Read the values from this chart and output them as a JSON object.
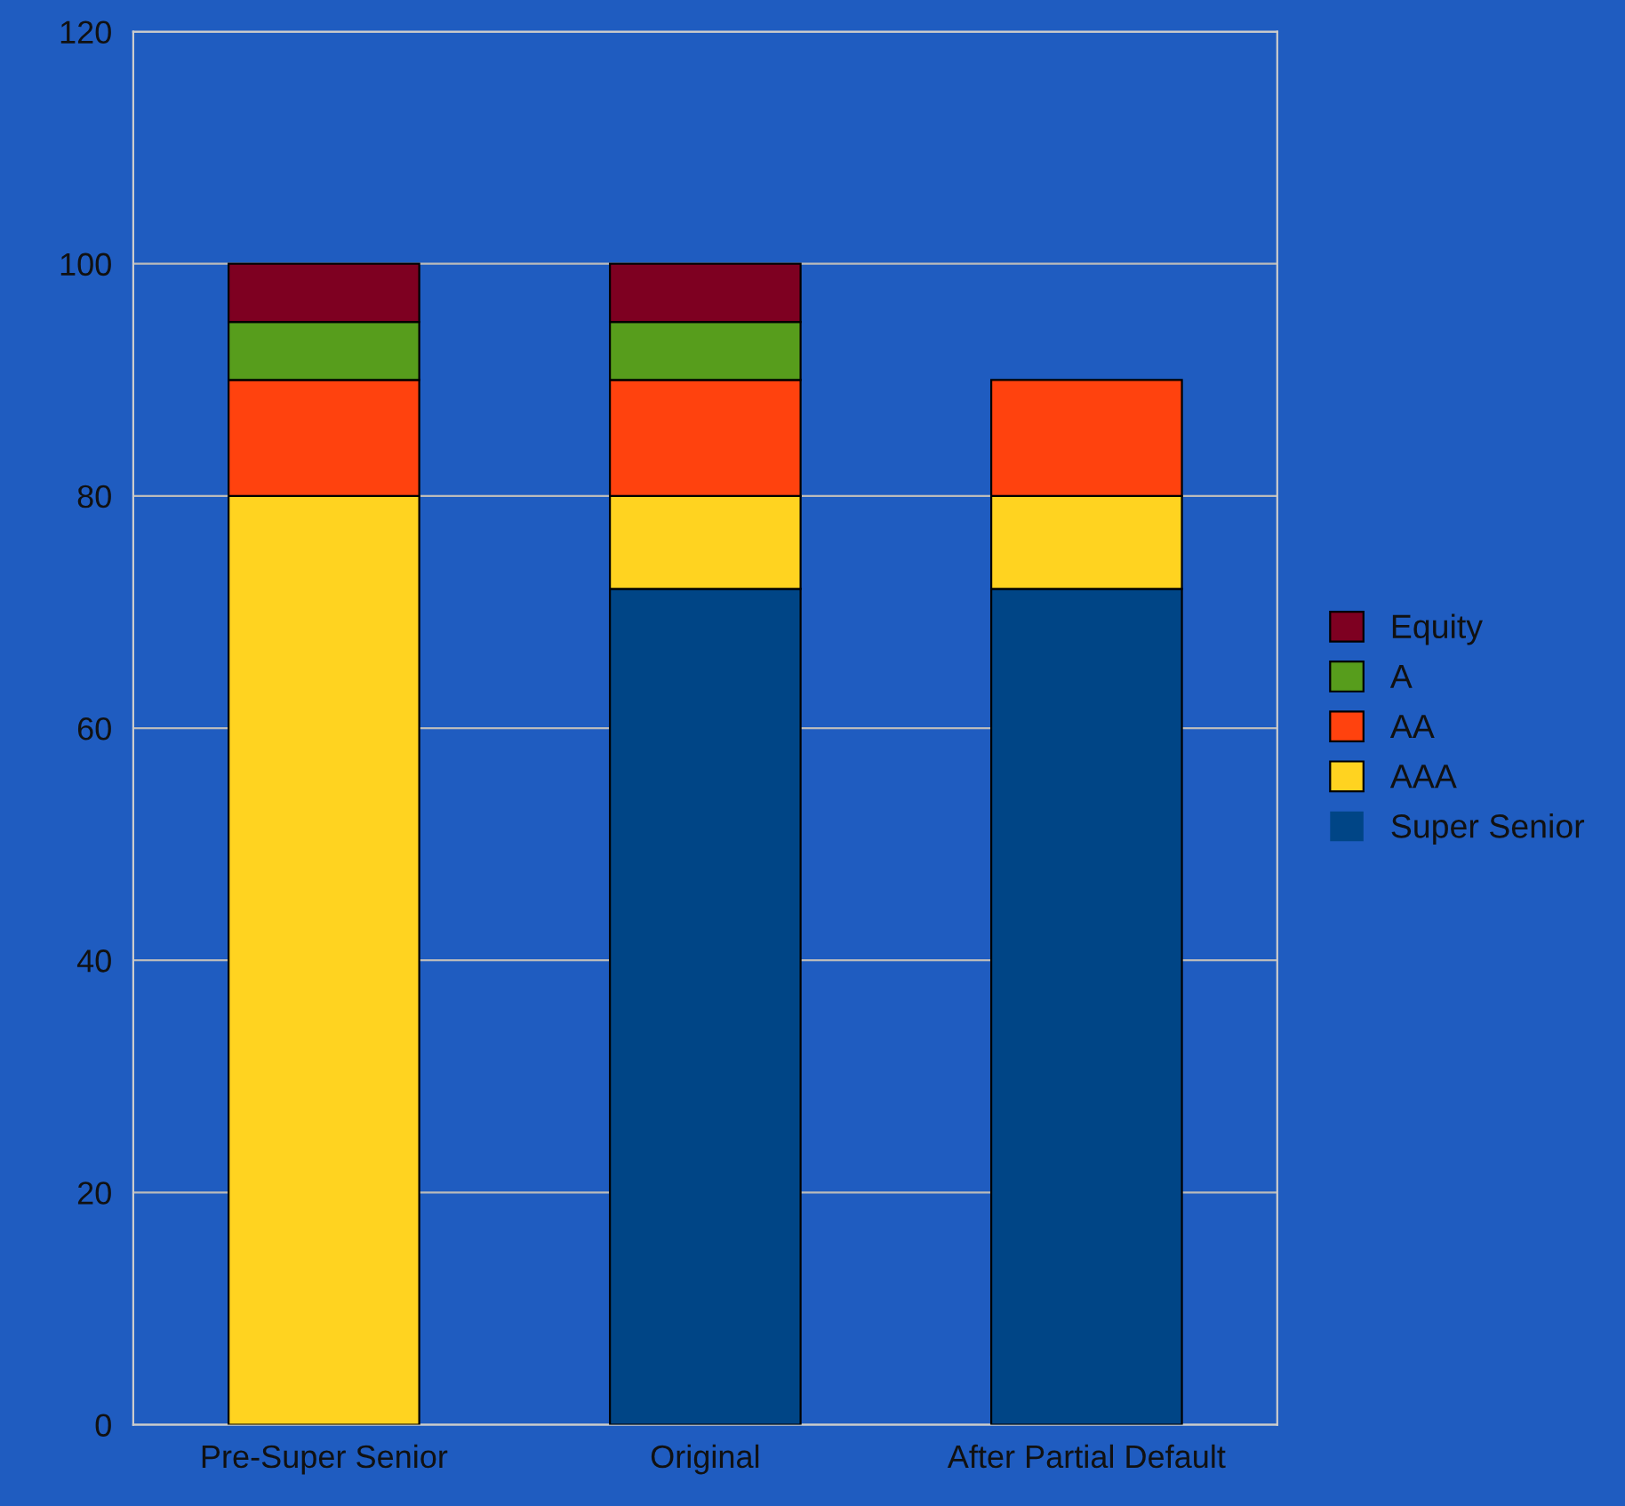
{
  "chart_data": {
    "type": "bar",
    "stacked": true,
    "categories": [
      "Pre-Super Senior",
      "Original",
      "After Partial Default"
    ],
    "series": [
      {
        "name": "Super Senior",
        "color": "#004586",
        "values": [
          0,
          72,
          72
        ]
      },
      {
        "name": "AAA",
        "color": "#ffd320",
        "values": [
          80,
          8,
          8
        ]
      },
      {
        "name": "AA",
        "color": "#ff420e",
        "values": [
          10,
          10,
          10
        ]
      },
      {
        "name": "A",
        "color": "#579d1c",
        "values": [
          5,
          5,
          0
        ]
      },
      {
        "name": "Equity",
        "color": "#7e0021",
        "values": [
          5,
          5,
          0
        ]
      }
    ],
    "ylim": [
      0,
      120
    ],
    "yticks": [
      0,
      20,
      40,
      60,
      80,
      100,
      120
    ],
    "grid": "y",
    "legend": "right"
  }
}
